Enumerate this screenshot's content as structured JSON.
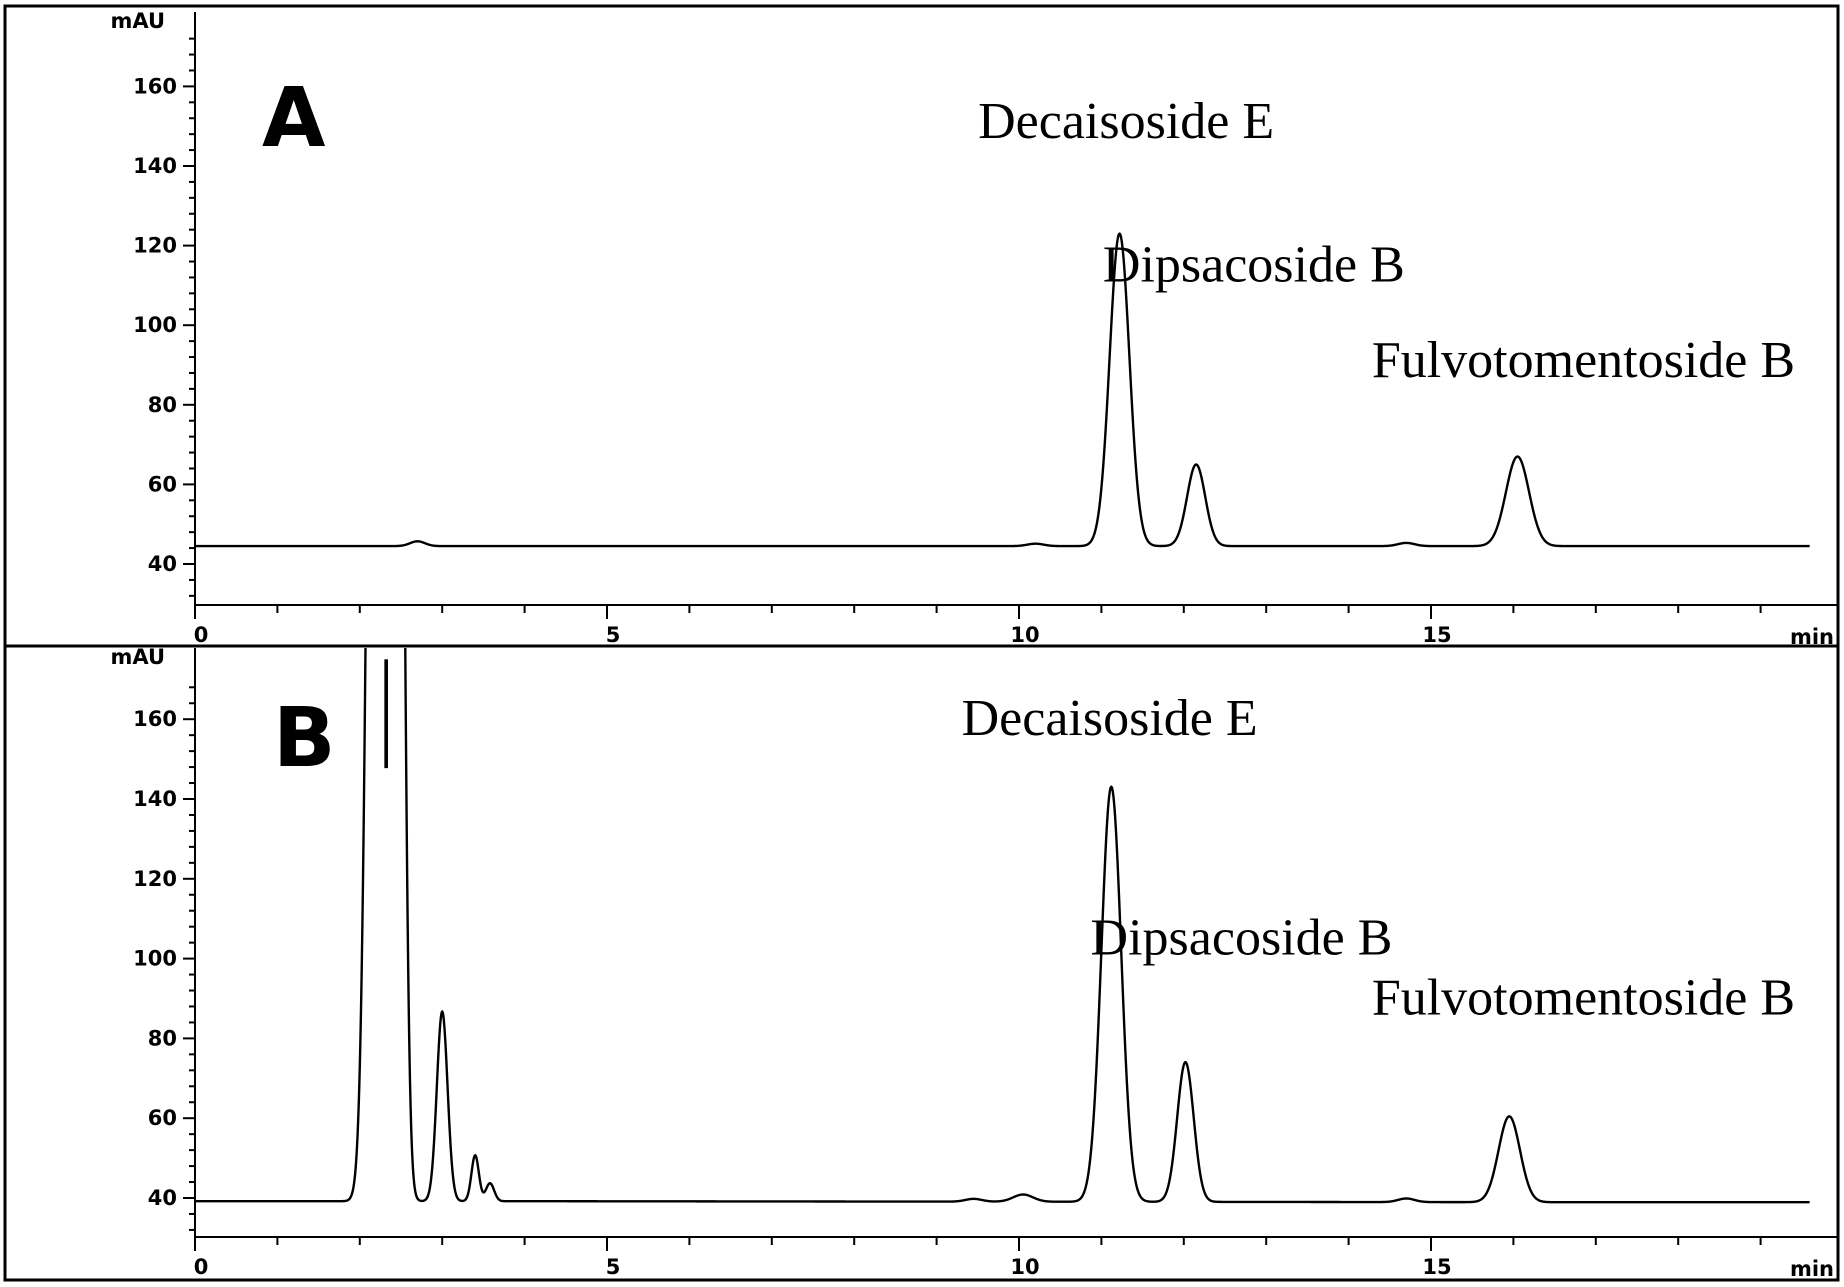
{
  "chart_data": [
    {
      "type": "line",
      "panel_label": "A",
      "ylabel": "mAU",
      "xlabel": "min",
      "xlim": [
        0,
        19.6
      ],
      "ylim": [
        30,
        175
      ],
      "x_ticks": [
        0,
        5,
        10,
        15
      ],
      "y_ticks": [
        40,
        60,
        80,
        100,
        120,
        140,
        160
      ],
      "baseline": 44.5,
      "peaks": [
        {
          "x": 2.7,
          "height": 1.2,
          "width": 0.09
        },
        {
          "x": 10.2,
          "height": 0.6,
          "width": 0.1
        },
        {
          "x": 11.22,
          "height": 78.5,
          "width": 0.12
        },
        {
          "x": 12.15,
          "height": 20.5,
          "width": 0.11
        },
        {
          "x": 14.7,
          "height": 0.8,
          "width": 0.1
        },
        {
          "x": 16.05,
          "height": 22.5,
          "width": 0.14
        }
      ],
      "annotations": [
        {
          "text": "Decaisoside E",
          "x": 11.3,
          "y": 147
        },
        {
          "text": "Dipsacoside B",
          "x": 12.85,
          "y": 111
        },
        {
          "text": "Fulvotomentoside B",
          "x": 16.85,
          "y": 87
        }
      ]
    },
    {
      "type": "line",
      "panel_label": "B",
      "ylabel": "mAU",
      "xlabel": "min",
      "xlim": [
        0,
        19.6
      ],
      "ylim": [
        30,
        170
      ],
      "x_ticks": [
        0,
        5,
        10,
        15
      ],
      "y_ticks": [
        40,
        60,
        80,
        100,
        120,
        140,
        160
      ],
      "baseline": 39.2,
      "clipped_peaks": [
        {
          "x": 2.2,
          "top": 175
        },
        {
          "x": 2.45,
          "top": 175
        }
      ],
      "peaks": [
        {
          "x": 2.2,
          "height": 400,
          "width": 0.09
        },
        {
          "x": 2.45,
          "height": 400,
          "width": 0.07
        },
        {
          "x": 3.0,
          "height": 47.5,
          "width": 0.065
        },
        {
          "x": 3.4,
          "height": 11.5,
          "width": 0.045
        },
        {
          "x": 3.58,
          "height": 4.5,
          "width": 0.05
        },
        {
          "x": 9.45,
          "height": 0.7,
          "width": 0.1
        },
        {
          "x": 10.05,
          "height": 1.8,
          "width": 0.12
        },
        {
          "x": 11.12,
          "height": 104,
          "width": 0.12
        },
        {
          "x": 12.02,
          "height": 35,
          "width": 0.1
        },
        {
          "x": 14.7,
          "height": 0.9,
          "width": 0.1
        },
        {
          "x": 15.95,
          "height": 21.5,
          "width": 0.13
        }
      ],
      "annotations": [
        {
          "text": "Decaisoside E",
          "x": 11.1,
          "y": 156
        },
        {
          "text": "Dipsacoside B",
          "x": 12.7,
          "y": 101
        },
        {
          "text": "Fulvotomentoside B",
          "x": 16.85,
          "y": 86
        }
      ]
    }
  ]
}
